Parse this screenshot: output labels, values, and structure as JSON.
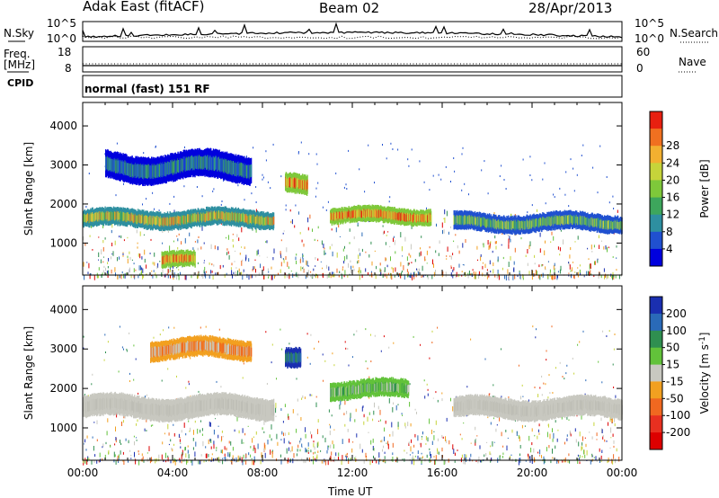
{
  "header": {
    "station": "Adak East (fitACF)",
    "beam": "Beam 02",
    "date": "28/Apr/2013"
  },
  "top_strip": {
    "left_label": "N.Sky",
    "right_label": "N.Search",
    "left_ticks": [
      "10^5",
      "10^0"
    ],
    "right_ticks": [
      "10^5",
      "10^0"
    ]
  },
  "freq_strip": {
    "left_label_line1": "Freq.",
    "left_label_line2": "[MHz]",
    "right_label": "Nave",
    "left_ticks": [
      "18",
      "8"
    ],
    "right_ticks": [
      "60",
      "0"
    ]
  },
  "cpid": {
    "label": "CPID",
    "mode": "normal (fast) 151 RF"
  },
  "chart_data": [
    {
      "type": "heatmap",
      "quantity": "Power",
      "xlabel": "",
      "ylabel": "Slant Range [km]",
      "x_ticks": [
        "00:00",
        "04:00",
        "08:00",
        "12:00",
        "16:00",
        "20:00",
        "00:00"
      ],
      "y_ticks": [
        "1000",
        "2000",
        "3000",
        "4000"
      ],
      "ylim": [
        180,
        4600
      ],
      "xlim_hours": [
        0,
        24
      ],
      "colorbar": {
        "label": "Power [dB]",
        "ticks": [
          "4",
          "8",
          "12",
          "16",
          "20",
          "24",
          "28"
        ],
        "colors": [
          "#0000dd",
          "#2050d0",
          "#2e8fa0",
          "#3da65c",
          "#7ec83a",
          "#c6d43a",
          "#f2b030",
          "#f07020",
          "#e82010"
        ]
      },
      "bands": [
        {
          "t_start": 0,
          "t_end": 8.5,
          "range_low": 1450,
          "range_high": 1800,
          "level": "medium-high"
        },
        {
          "t_start": 1,
          "t_end": 7.5,
          "range_low": 2650,
          "range_high": 3250,
          "level": "low"
        },
        {
          "t_start": 3.5,
          "t_end": 5,
          "range_low": 400,
          "range_high": 700,
          "level": "high"
        },
        {
          "t_start": 9,
          "t_end": 10,
          "range_low": 2300,
          "range_high": 2700,
          "level": "high"
        },
        {
          "t_start": 11,
          "t_end": 15.5,
          "range_low": 1550,
          "range_high": 1850,
          "level": "high"
        },
        {
          "t_start": 16.5,
          "t_end": 24,
          "range_low": 1350,
          "range_high": 1700,
          "level": "medium"
        }
      ]
    },
    {
      "type": "heatmap",
      "quantity": "Velocity",
      "xlabel": "Time UT",
      "ylabel": "Slant Range [km]",
      "x_ticks": [
        "00:00",
        "04:00",
        "08:00",
        "12:00",
        "16:00",
        "20:00",
        "00:00"
      ],
      "y_ticks": [
        "1000",
        "2000",
        "3000",
        "4000"
      ],
      "ylim": [
        180,
        4600
      ],
      "xlim_hours": [
        0,
        24
      ],
      "colorbar": {
        "label": "Velocity [m s",
        "label_exp": "-1",
        "label_close": "]",
        "ticks": [
          "200",
          "100",
          "50",
          "15",
          "-15",
          "-50",
          "-100",
          "-200"
        ],
        "colors": [
          "#1a2fb0",
          "#2a6ab8",
          "#2f8f50",
          "#62c23a",
          "#c8c8c0",
          "#f2a020",
          "#f06820",
          "#e83020",
          "#dd0000"
        ]
      },
      "bands": [
        {
          "t_start": 0,
          "t_end": 8.5,
          "range_low": 1300,
          "range_high": 1750,
          "level": "ground-scatter"
        },
        {
          "t_start": 3,
          "t_end": 7.5,
          "range_low": 2800,
          "range_high": 3200,
          "level": "negative"
        },
        {
          "t_start": 9,
          "t_end": 9.7,
          "range_low": 2500,
          "range_high": 2900,
          "level": "positive-high"
        },
        {
          "t_start": 11,
          "t_end": 14.5,
          "range_low": 1800,
          "range_high": 2150,
          "level": "positive"
        },
        {
          "t_start": 16.5,
          "t_end": 24,
          "range_low": 1300,
          "range_high": 1700,
          "level": "ground-scatter"
        }
      ]
    }
  ]
}
